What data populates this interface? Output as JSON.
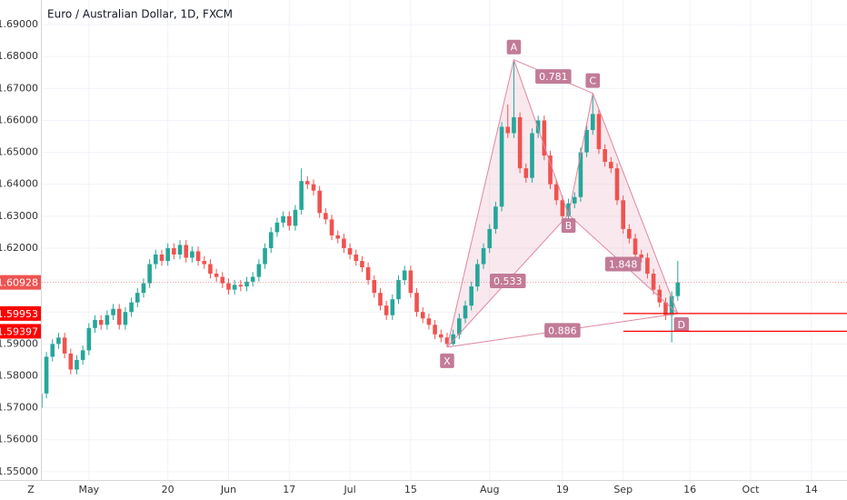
{
  "chart_data": {
    "type": "candlestick",
    "title": "Euro / Australian Dollar, 1D, FXCM",
    "corner_label": "Z",
    "up_color": "#26a69a",
    "down_color": "#ef5350",
    "ylim": [
      1.5474,
      1.6977
    ],
    "yticks": [
      {
        "value": 1.55,
        "label": "1.55000"
      },
      {
        "value": 1.56,
        "label": "1.56000"
      },
      {
        "value": 1.57,
        "label": "1.57000"
      },
      {
        "value": 1.58,
        "label": "1.58000"
      },
      {
        "value": 1.59,
        "label": "1.59000"
      },
      {
        "value": 1.6,
        "label": "1.60000"
      },
      {
        "value": 1.61,
        "label": "1.61000"
      },
      {
        "value": 1.62,
        "label": "1.62000"
      },
      {
        "value": 1.63,
        "label": "1.63000"
      },
      {
        "value": 1.64,
        "label": "1.64000"
      },
      {
        "value": 1.65,
        "label": "1.65000"
      },
      {
        "value": 1.66,
        "label": "1.66000"
      },
      {
        "value": 1.67,
        "label": "1.67000"
      },
      {
        "value": 1.68,
        "label": "1.68000"
      },
      {
        "value": 1.69,
        "label": "1.69000"
      }
    ],
    "xticks": [
      {
        "value": "05-01",
        "label": "May"
      },
      {
        "value": "05-20",
        "label": "20"
      },
      {
        "value": "06-03",
        "label": "Jun"
      },
      {
        "value": "06-17",
        "label": "17"
      },
      {
        "value": "07-01",
        "label": "Jul"
      },
      {
        "value": "07-15",
        "label": "15"
      },
      {
        "value": "08-01",
        "label": "Aug"
      },
      {
        "value": "08-19",
        "label": "19"
      },
      {
        "value": "09-02",
        "label": "Sep"
      },
      {
        "value": "09-16",
        "label": "16"
      },
      {
        "value": "10-01",
        "label": "Oct"
      },
      {
        "value": "10-14",
        "label": "14"
      }
    ],
    "x": [
      "04-19",
      "04-22",
      "04-23",
      "04-24",
      "04-25",
      "04-26",
      "04-29",
      "04-30",
      "05-01",
      "05-02",
      "05-03",
      "05-06",
      "05-07",
      "05-08",
      "05-09",
      "05-10",
      "05-13",
      "05-14",
      "05-15",
      "05-16",
      "05-17",
      "05-20",
      "05-21",
      "05-22",
      "05-23",
      "05-24",
      "05-27",
      "05-28",
      "05-29",
      "05-30",
      "05-31",
      "06-03",
      "06-04",
      "06-05",
      "06-06",
      "06-07",
      "06-10",
      "06-11",
      "06-12",
      "06-13",
      "06-14",
      "06-17",
      "06-18",
      "06-19",
      "06-20",
      "06-21",
      "06-24",
      "06-25",
      "06-26",
      "06-27",
      "06-28",
      "07-01",
      "07-02",
      "07-03",
      "07-04",
      "07-05",
      "07-08",
      "07-09",
      "07-10",
      "07-11",
      "07-12",
      "07-15",
      "07-16",
      "07-17",
      "07-18",
      "07-19",
      "07-22",
      "07-23",
      "07-24",
      "07-25",
      "07-26",
      "07-29",
      "07-30",
      "07-31",
      "08-01",
      "08-02",
      "08-05",
      "08-06",
      "08-07",
      "08-08",
      "08-09",
      "08-12",
      "08-13",
      "08-14",
      "08-15",
      "08-16",
      "08-19",
      "08-20",
      "08-21",
      "08-22",
      "08-23",
      "08-26",
      "08-27",
      "08-28",
      "08-29",
      "08-30",
      "09-02",
      "09-03",
      "09-04",
      "09-05",
      "09-06",
      "09-09",
      "09-10",
      "09-11",
      "09-12",
      "09-13"
    ],
    "open": [
      1.57,
      1.5745,
      1.586,
      1.59,
      1.592,
      1.587,
      1.582,
      1.585,
      1.588,
      1.595,
      1.5975,
      1.596,
      1.599,
      1.601,
      1.596,
      1.6,
      1.603,
      1.606,
      1.609,
      1.615,
      1.618,
      1.616,
      1.62,
      1.618,
      1.621,
      1.617,
      1.619,
      1.616,
      1.615,
      1.612,
      1.611,
      1.609,
      1.607,
      1.6085,
      1.608,
      1.6095,
      1.611,
      1.615,
      1.62,
      1.625,
      1.628,
      1.63,
      1.627,
      1.632,
      1.641,
      1.64,
      1.638,
      1.631,
      1.629,
      1.624,
      1.623,
      1.62,
      1.618,
      1.616,
      1.614,
      1.61,
      1.606,
      1.602,
      1.599,
      1.604,
      1.61,
      1.613,
      1.606,
      1.6,
      1.598,
      1.596,
      1.593,
      1.592,
      1.59,
      1.593,
      1.598,
      1.602,
      1.608,
      1.615,
      1.62,
      1.626,
      1.633,
      1.658,
      1.656,
      1.661,
      1.645,
      1.642,
      1.656,
      1.66,
      1.649,
      1.64,
      1.635,
      1.63,
      1.634,
      1.636,
      1.65,
      1.657,
      1.662,
      1.651,
      1.647,
      1.645,
      1.635,
      1.626,
      1.623,
      1.618,
      1.617,
      1.612,
      1.607,
      1.603,
      1.599,
      1.605
    ],
    "high": [
      1.576,
      1.5875,
      1.5915,
      1.5935,
      1.5935,
      1.5885,
      1.5865,
      1.5895,
      1.5965,
      1.599,
      1.599,
      1.6005,
      1.6025,
      1.6025,
      1.6015,
      1.6045,
      1.6075,
      1.6105,
      1.6165,
      1.6195,
      1.6195,
      1.6215,
      1.6215,
      1.6225,
      1.6225,
      1.6205,
      1.6205,
      1.6175,
      1.6165,
      1.6135,
      1.6125,
      1.6105,
      1.61,
      1.61,
      1.611,
      1.6125,
      1.6165,
      1.6215,
      1.6265,
      1.6295,
      1.6315,
      1.6315,
      1.6335,
      1.645,
      1.6425,
      1.6415,
      1.6395,
      1.6325,
      1.6305,
      1.6255,
      1.6245,
      1.6215,
      1.6195,
      1.6175,
      1.6155,
      1.6115,
      1.6075,
      1.6035,
      1.6055,
      1.6115,
      1.6145,
      1.6145,
      1.6075,
      1.6015,
      1.5995,
      1.5975,
      1.5945,
      1.5935,
      1.5945,
      1.5995,
      1.6035,
      1.6095,
      1.6165,
      1.6215,
      1.6275,
      1.6345,
      1.6595,
      1.665,
      1.679,
      1.6625,
      1.6465,
      1.6575,
      1.6615,
      1.6615,
      1.6505,
      1.6415,
      1.6365,
      1.6355,
      1.6375,
      1.6515,
      1.6585,
      1.6685,
      1.6635,
      1.6525,
      1.6485,
      1.6465,
      1.6365,
      1.6275,
      1.6245,
      1.6195,
      1.6185,
      1.6135,
      1.6085,
      1.6045,
      1.6065,
      1.616
    ],
    "low": [
      1.569,
      1.573,
      1.5845,
      1.5885,
      1.5855,
      1.5805,
      1.5805,
      1.5835,
      1.5865,
      1.5935,
      1.5945,
      1.5945,
      1.5975,
      1.5945,
      1.5945,
      1.5985,
      1.6015,
      1.6045,
      1.6075,
      1.6135,
      1.6145,
      1.6145,
      1.6165,
      1.6165,
      1.6155,
      1.6155,
      1.6145,
      1.6135,
      1.6105,
      1.6095,
      1.6075,
      1.6055,
      1.6055,
      1.6065,
      1.6065,
      1.608,
      1.6095,
      1.6135,
      1.6185,
      1.6235,
      1.6265,
      1.6255,
      1.6255,
      1.6305,
      1.6385,
      1.6365,
      1.6295,
      1.6275,
      1.6225,
      1.6215,
      1.6185,
      1.6165,
      1.6145,
      1.6125,
      1.6085,
      1.6045,
      1.6005,
      1.5975,
      1.5975,
      1.6025,
      1.6085,
      1.6045,
      1.5985,
      1.5965,
      1.5945,
      1.5915,
      1.5905,
      1.589,
      1.5895,
      1.5915,
      1.5965,
      1.6005,
      1.6065,
      1.6135,
      1.6185,
      1.6245,
      1.6315,
      1.6545,
      1.6545,
      1.6435,
      1.6405,
      1.6405,
      1.6545,
      1.6475,
      1.6385,
      1.6335,
      1.6285,
      1.6285,
      1.6325,
      1.6345,
      1.6485,
      1.6555,
      1.6495,
      1.6455,
      1.6435,
      1.6335,
      1.6245,
      1.6215,
      1.6165,
      1.6155,
      1.6105,
      1.6055,
      1.6015,
      1.5975,
      1.5905,
      1.6035
    ],
    "close": [
      1.5745,
      1.586,
      1.59,
      1.592,
      1.587,
      1.582,
      1.585,
      1.588,
      1.595,
      1.5975,
      1.596,
      1.599,
      1.601,
      1.596,
      1.6,
      1.603,
      1.606,
      1.609,
      1.615,
      1.618,
      1.616,
      1.62,
      1.618,
      1.621,
      1.617,
      1.619,
      1.616,
      1.615,
      1.612,
      1.611,
      1.609,
      1.607,
      1.6085,
      1.608,
      1.6095,
      1.611,
      1.615,
      1.62,
      1.625,
      1.628,
      1.63,
      1.627,
      1.632,
      1.641,
      1.64,
      1.638,
      1.631,
      1.629,
      1.624,
      1.623,
      1.62,
      1.618,
      1.616,
      1.614,
      1.61,
      1.606,
      1.602,
      1.599,
      1.604,
      1.61,
      1.613,
      1.606,
      1.6,
      1.598,
      1.596,
      1.593,
      1.592,
      1.59,
      1.593,
      1.598,
      1.602,
      1.608,
      1.615,
      1.62,
      1.626,
      1.633,
      1.658,
      1.656,
      1.661,
      1.645,
      1.642,
      1.656,
      1.66,
      1.649,
      1.64,
      1.635,
      1.63,
      1.634,
      1.636,
      1.65,
      1.657,
      1.662,
      1.651,
      1.647,
      1.645,
      1.635,
      1.626,
      1.623,
      1.618,
      1.617,
      1.612,
      1.607,
      1.603,
      1.599,
      1.605,
      1.60928
    ],
    "last_price": 1.60928,
    "levels": {
      "color": "#ff0000",
      "values": [
        1.59953,
        1.59397
      ]
    },
    "pattern": {
      "color": "#e0879f",
      "label_color": "#c27b97",
      "points": [
        {
          "label": "X",
          "x": "07-23",
          "price": 1.589
        },
        {
          "label": "A",
          "x": "08-07",
          "price": 1.679
        },
        {
          "label": "B",
          "x": "08-20",
          "price": 1.6305
        },
        {
          "label": "C",
          "x": "08-26",
          "price": 1.6685
        },
        {
          "label": "D",
          "x": "09-13",
          "price": 1.5995
        }
      ],
      "ratios": [
        0.781,
        0.533,
        1.848,
        0.886
      ]
    }
  }
}
